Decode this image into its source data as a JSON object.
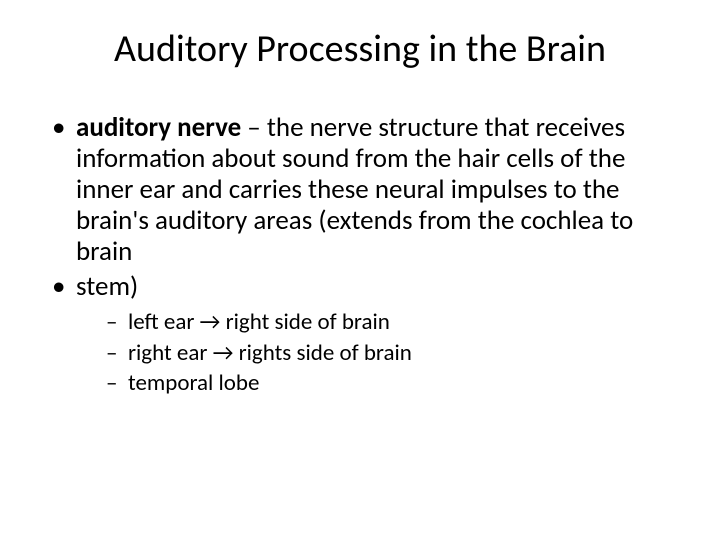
{
  "title": "Auditory Processing in the Brain",
  "bullets": {
    "b1_bold": "auditory nerve",
    "b1_rest": " – the nerve structure that receives information about sound from the hair cells of the inner ear and carries these neural impulses to the brain's auditory areas (extends from the cochlea to brain",
    "b2": "stem)",
    "sub1": "left ear → right side of brain",
    "sub2": "right ear → rights side of brain",
    "sub3": "temporal lobe"
  }
}
